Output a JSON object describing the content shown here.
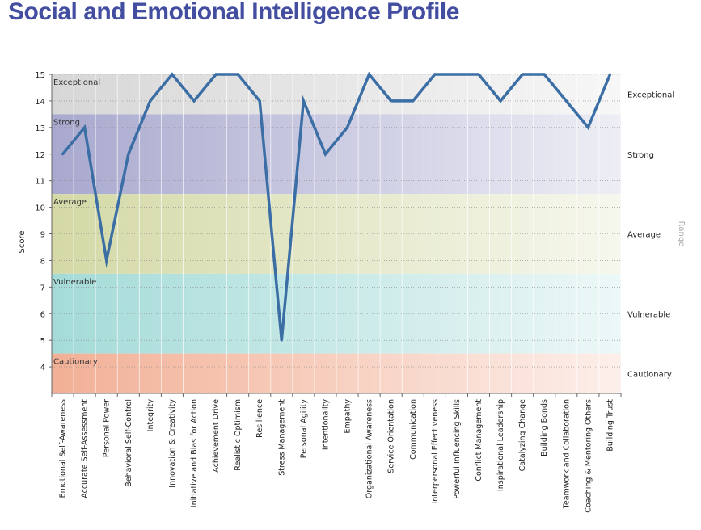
{
  "title": "Social and Emotional Intelligence Profile",
  "chart_data": {
    "type": "line",
    "ylabel": "Score",
    "right_axis_label": "Range",
    "ylim": [
      3,
      15
    ],
    "yticks": [
      4,
      5,
      6,
      7,
      8,
      9,
      10,
      11,
      12,
      13,
      14,
      15
    ],
    "grid": true,
    "bands": [
      {
        "label": "Exceptional",
        "from": 13.5,
        "to": 15,
        "color": "#d7d7d7"
      },
      {
        "label": "Strong",
        "from": 10.5,
        "to": 13.5,
        "color": "#a9a9cf"
      },
      {
        "label": "Average",
        "from": 7.5,
        "to": 10.5,
        "color": "#d4d9a6"
      },
      {
        "label": "Vulnerable",
        "from": 4.5,
        "to": 7.5,
        "color": "#a4dbd8"
      },
      {
        "label": "Cautionary",
        "from": 3,
        "to": 4.5,
        "color": "#f2b096"
      }
    ],
    "line_color": "#3b6ea5",
    "categories": [
      "Emotional Self-Awareness",
      "Accurate Self-Assessment",
      "Personal Power",
      "Behavioral Self-Control",
      "Integrity",
      "Innovation & Creativity",
      "Initiative and Bias for Action",
      "Achievement Drive",
      "Realistic Optimism",
      "Resilience",
      "Stress Management",
      "Personal Agility",
      "Intentionality",
      "Empathy",
      "Organizational Awareness",
      "Service Orientation",
      "Communication",
      "Interpersonal Effectiveness",
      "Powerful Influencing Skills",
      "Conflict Management",
      "Inspirational Leadership",
      "Catalyzing Change",
      "Building Bonds",
      "Teamwork and Collaboration",
      "Coaching & Mentoring Others",
      "Building Trust"
    ],
    "values": [
      12,
      13,
      8,
      12,
      14,
      15,
      14,
      15,
      15,
      14,
      5,
      14,
      12,
      13,
      15,
      14,
      14,
      15,
      15,
      15,
      14,
      15,
      15,
      14,
      13,
      15
    ]
  }
}
